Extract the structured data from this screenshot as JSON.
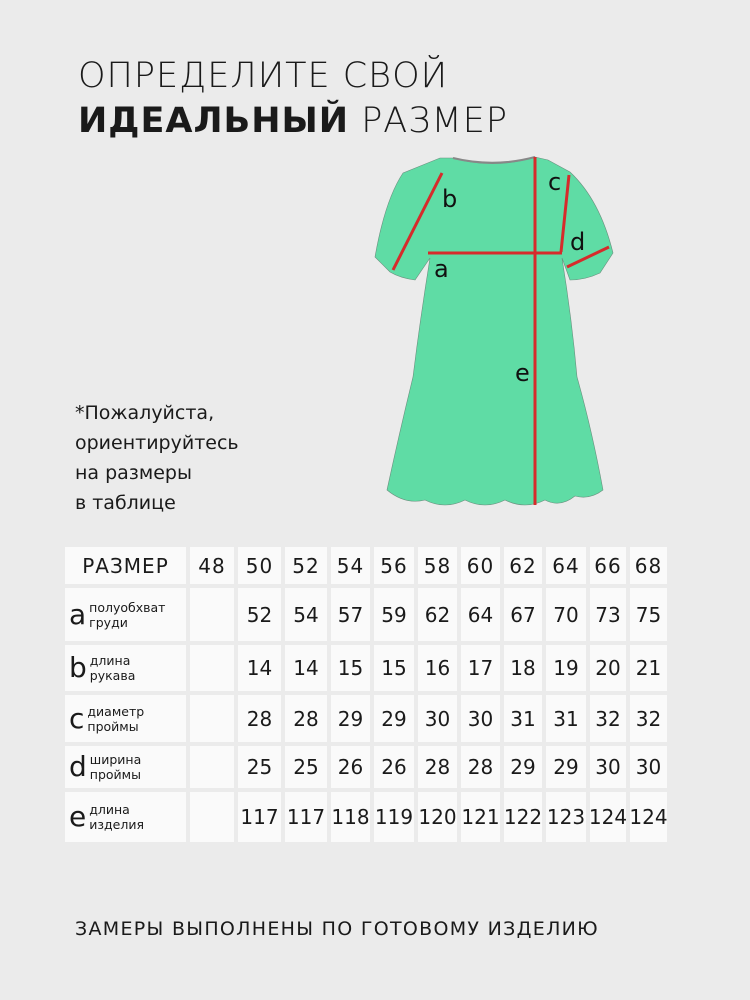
{
  "title": {
    "line1": "ОПРЕДЕЛИТЕ СВОЙ",
    "line2_bold": "ИДЕАЛЬНЫЙ",
    "line2_rest": " РАЗМЕР"
  },
  "note": [
    "*Пожалуйста,",
    "ориентируйтесь",
    "на размеры",
    "в таблице"
  ],
  "diagram": {
    "labels": {
      "a": "a",
      "b": "b",
      "c": "c",
      "d": "d",
      "e": "e"
    },
    "dress_color": "#5fdca5",
    "line_color": "#d62b2b"
  },
  "table": {
    "header_label": "РАЗМЕР",
    "sizes": [
      "48",
      "50",
      "52",
      "54",
      "56",
      "58",
      "60",
      "62",
      "64",
      "66",
      "68"
    ],
    "rows": [
      {
        "letter": "a",
        "desc1": "полуобхват",
        "desc2": "груди",
        "values": [
          "",
          "52",
          "54",
          "57",
          "59",
          "62",
          "64",
          "67",
          "70",
          "73",
          "75"
        ]
      },
      {
        "letter": "b",
        "desc1": "длина",
        "desc2": "рукава",
        "values": [
          "",
          "14",
          "14",
          "15",
          "15",
          "16",
          "17",
          "18",
          "19",
          "20",
          "21"
        ]
      },
      {
        "letter": "c",
        "desc1": "диаметр",
        "desc2": "проймы",
        "values": [
          "",
          "28",
          "28",
          "29",
          "29",
          "30",
          "30",
          "31",
          "31",
          "32",
          "32"
        ]
      },
      {
        "letter": "d",
        "desc1": "ширина",
        "desc2": "проймы",
        "values": [
          "",
          "25",
          "25",
          "26",
          "26",
          "28",
          "28",
          "29",
          "29",
          "30",
          "30"
        ]
      },
      {
        "letter": "e",
        "desc1": "длина",
        "desc2": "изделия",
        "values": [
          "",
          "117",
          "117",
          "118",
          "119",
          "120",
          "121",
          "122",
          "123",
          "124",
          "124"
        ]
      }
    ]
  },
  "footer": "ЗАМЕРЫ ВЫПОЛНЕНЫ ПО ГОТОВОМУ ИЗДЕЛИЮ"
}
